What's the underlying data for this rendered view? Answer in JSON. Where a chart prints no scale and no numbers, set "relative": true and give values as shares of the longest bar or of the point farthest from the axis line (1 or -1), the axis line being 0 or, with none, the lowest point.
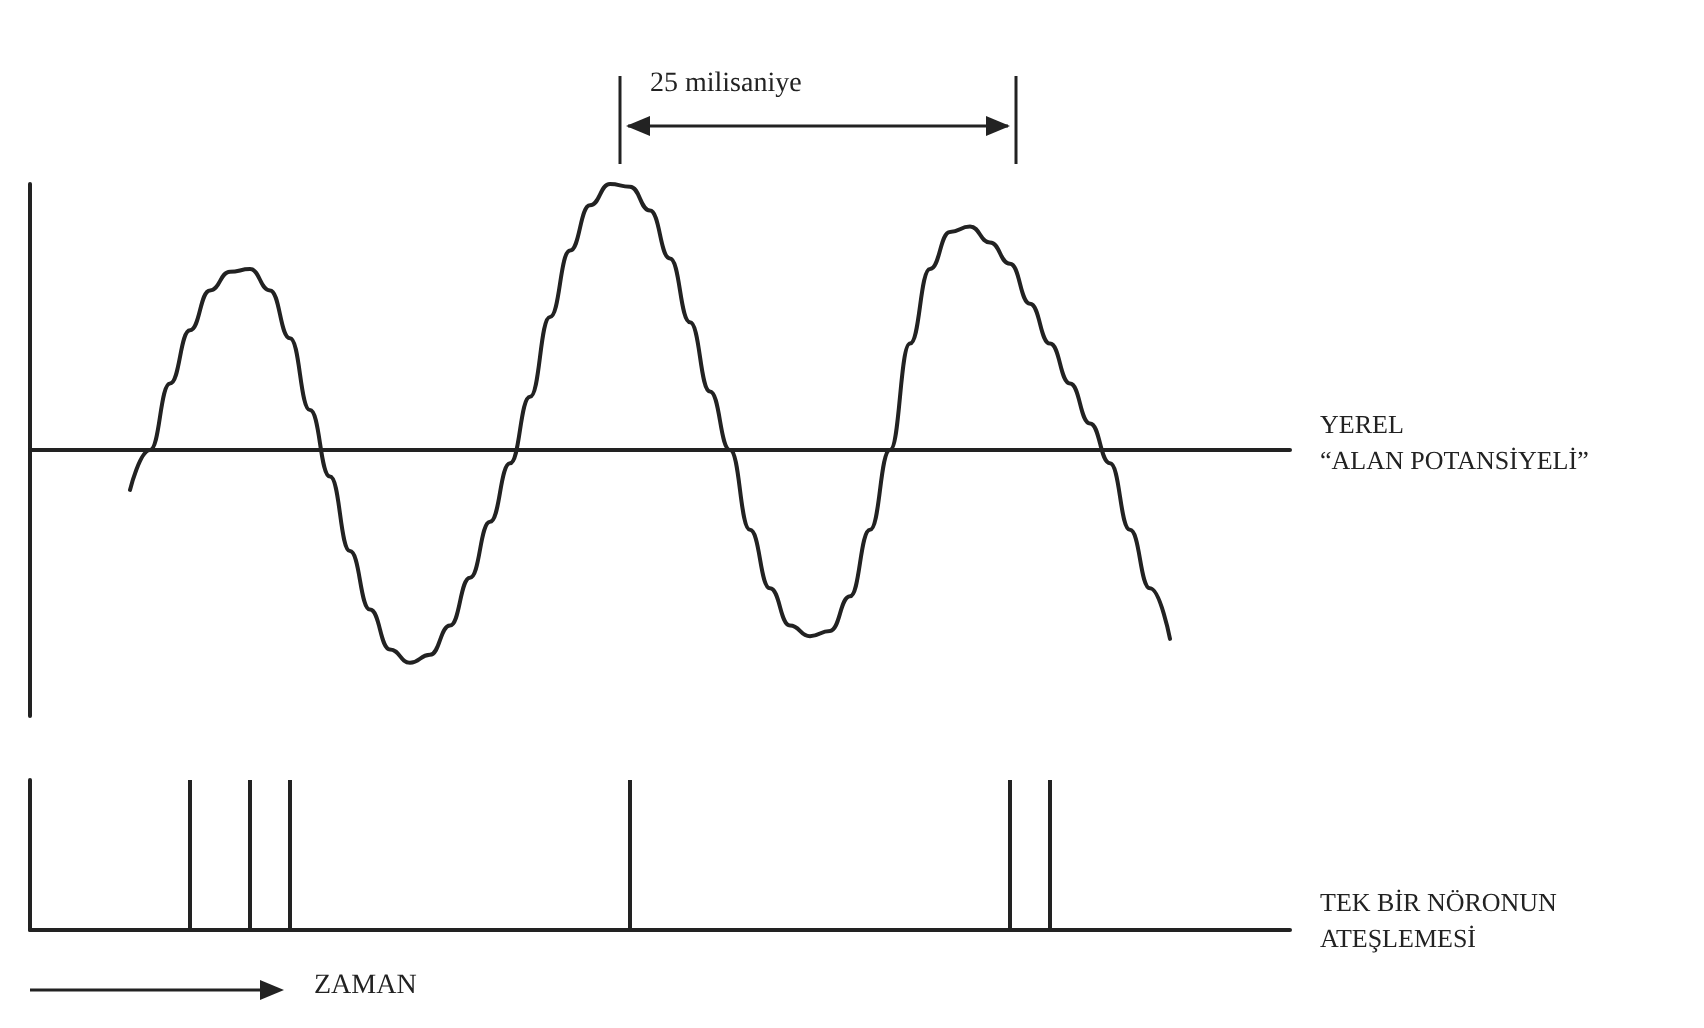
{
  "chart_data": [
    {
      "type": "line",
      "relative": true,
      "annotations": [
        "25 milisaniye"
      ],
      "categories": [
        null,
        null,
        null,
        null,
        null,
        null,
        null,
        null,
        null,
        null,
        null,
        null,
        null,
        null,
        null,
        null,
        null,
        null,
        null,
        null,
        null,
        null,
        null,
        null,
        null,
        null,
        null,
        null,
        null,
        null,
        null,
        null,
        null,
        null,
        null,
        null,
        null,
        null,
        null,
        null,
        null,
        null,
        null,
        null,
        null,
        null,
        null,
        null,
        null,
        null,
        null,
        null,
        null,
        null,
        null,
        null,
        null,
        null,
        null,
        null,
        null,
        null,
        null,
        null
      ],
      "series": [
        {
          "name": "YEREL “ALAN POTANSİYELİ”",
          "color": "#222222",
          "values": [
            null,
            null,
            null,
            null,
            null,
            -0.15,
            0.0,
            0.25,
            0.45,
            0.6,
            0.67,
            0.68,
            0.6,
            0.42,
            0.15,
            -0.1,
            -0.38,
            -0.6,
            -0.75,
            -0.8,
            -0.77,
            -0.66,
            -0.48,
            -0.27,
            -0.05,
            0.2,
            0.5,
            0.75,
            0.92,
            1.0,
            0.99,
            0.9,
            0.72,
            0.48,
            0.22,
            0.0,
            -0.3,
            -0.52,
            -0.66,
            -0.7,
            -0.68,
            -0.55,
            -0.3,
            0.0,
            0.4,
            0.68,
            0.82,
            0.84,
            0.78,
            0.7,
            0.55,
            0.4,
            0.25,
            0.1,
            -0.05,
            -0.3,
            -0.52,
            -0.71,
            null,
            null,
            null,
            null,
            null,
            null
          ]
        }
      ]
    },
    {
      "type": "bar",
      "relative": true,
      "xlabel": "ZAMAN",
      "categories": [
        null,
        null,
        null,
        null,
        null,
        null,
        null,
        null,
        null,
        null,
        null,
        null,
        null,
        null,
        null,
        null,
        null,
        null,
        null,
        null,
        null,
        null,
        null,
        null,
        null,
        null,
        null,
        null,
        null,
        null,
        null,
        null,
        null,
        null,
        null,
        null,
        null,
        null,
        null,
        null,
        null,
        null,
        null,
        null,
        null,
        null,
        null,
        null,
        null,
        null,
        null,
        null,
        null,
        null,
        null,
        null,
        null,
        null,
        null,
        null,
        null,
        null,
        null,
        null
      ],
      "series": [
        {
          "name": "TEK BİR NÖRONUN ATEŞLEMESİ",
          "color": "#222222",
          "values": [
            null,
            null,
            null,
            null,
            null,
            null,
            null,
            null,
            1,
            null,
            null,
            1,
            null,
            1,
            null,
            null,
            null,
            null,
            null,
            null,
            null,
            null,
            null,
            null,
            null,
            null,
            null,
            null,
            null,
            null,
            1,
            null,
            null,
            null,
            null,
            null,
            null,
            null,
            null,
            null,
            null,
            null,
            null,
            null,
            null,
            null,
            null,
            null,
            null,
            1,
            null,
            1,
            null,
            null,
            null,
            null,
            null,
            null,
            null,
            null,
            null,
            null,
            null,
            null
          ]
        }
      ]
    }
  ]
}
